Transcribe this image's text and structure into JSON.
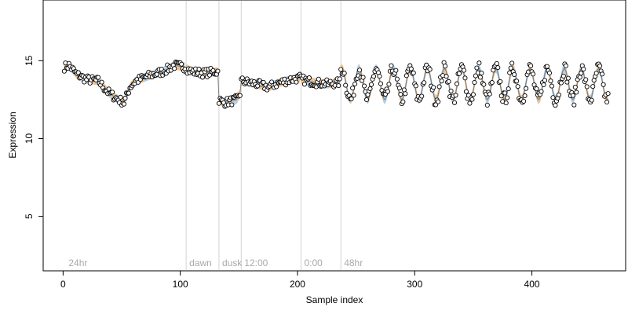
{
  "chart_data": {
    "type": "scatter",
    "title": "",
    "xlabel": "Sample index",
    "ylabel": "Expression",
    "xlim": [
      -17,
      480
    ],
    "ylim": [
      1.5,
      18.9
    ],
    "x_ticks": [
      0,
      100,
      200,
      300,
      400
    ],
    "y_ticks": [
      5,
      10,
      15
    ],
    "grid": false,
    "legend": "none",
    "colors": {
      "points_fill": "#ffffff",
      "points_edge": "#000000",
      "ribbon_orange": "#f5b470",
      "ribbon_blue": "#9ec3e6",
      "trend_line": "#808080",
      "vertical_lines": "#d3d3d3",
      "vertical_labels": "#a9a9a9"
    },
    "vertical_markers": [
      {
        "x": 2,
        "label": "24hr",
        "line": false
      },
      {
        "x": 105,
        "label": "dawn",
        "line": true
      },
      {
        "x": 133,
        "label": "dusk",
        "line": true
      },
      {
        "x": 152,
        "label": "12:00",
        "line": true
      },
      {
        "x": 203,
        "label": "0:00",
        "line": true
      },
      {
        "x": 237,
        "label": "48hr",
        "line": true
      }
    ],
    "segments": [
      {
        "x_start": 1,
        "x_end": 104,
        "pattern": "smooth",
        "anchors": [
          [
            1,
            14.6
          ],
          [
            5,
            14.7
          ],
          [
            12,
            14.1
          ],
          [
            20,
            13.8
          ],
          [
            30,
            13.7
          ],
          [
            38,
            13.0
          ],
          [
            45,
            12.6
          ],
          [
            52,
            12.3
          ],
          [
            57,
            13.3
          ],
          [
            62,
            13.7
          ],
          [
            72,
            14.0
          ],
          [
            85,
            14.3
          ],
          [
            95,
            14.7
          ],
          [
            104,
            14.6
          ]
        ]
      },
      {
        "x_start": 105,
        "x_end": 132,
        "pattern": "smooth",
        "anchors": [
          [
            105,
            14.5
          ],
          [
            110,
            14.3
          ],
          [
            120,
            14.2
          ],
          [
            132,
            14.3
          ]
        ]
      },
      {
        "x_start": 133,
        "x_end": 151,
        "pattern": "smooth",
        "anchors": [
          [
            133,
            12.5
          ],
          [
            137,
            12.3
          ],
          [
            143,
            12.4
          ],
          [
            148,
            12.5
          ],
          [
            151,
            12.9
          ]
        ]
      },
      {
        "x_start": 152,
        "x_end": 202,
        "pattern": "smooth",
        "anchors": [
          [
            152,
            13.7
          ],
          [
            165,
            13.5
          ],
          [
            175,
            13.3
          ],
          [
            185,
            13.6
          ],
          [
            195,
            13.8
          ],
          [
            202,
            13.9
          ]
        ]
      },
      {
        "x_start": 203,
        "x_end": 236,
        "pattern": "smooth",
        "anchors": [
          [
            203,
            13.8
          ],
          [
            215,
            13.6
          ],
          [
            225,
            13.5
          ],
          [
            236,
            13.6
          ]
        ]
      },
      {
        "x_start": 237,
        "x_end": 465,
        "pattern": "oscillating",
        "mid": 13.5,
        "amplitude": 1.0,
        "period": 14.6
      }
    ]
  }
}
